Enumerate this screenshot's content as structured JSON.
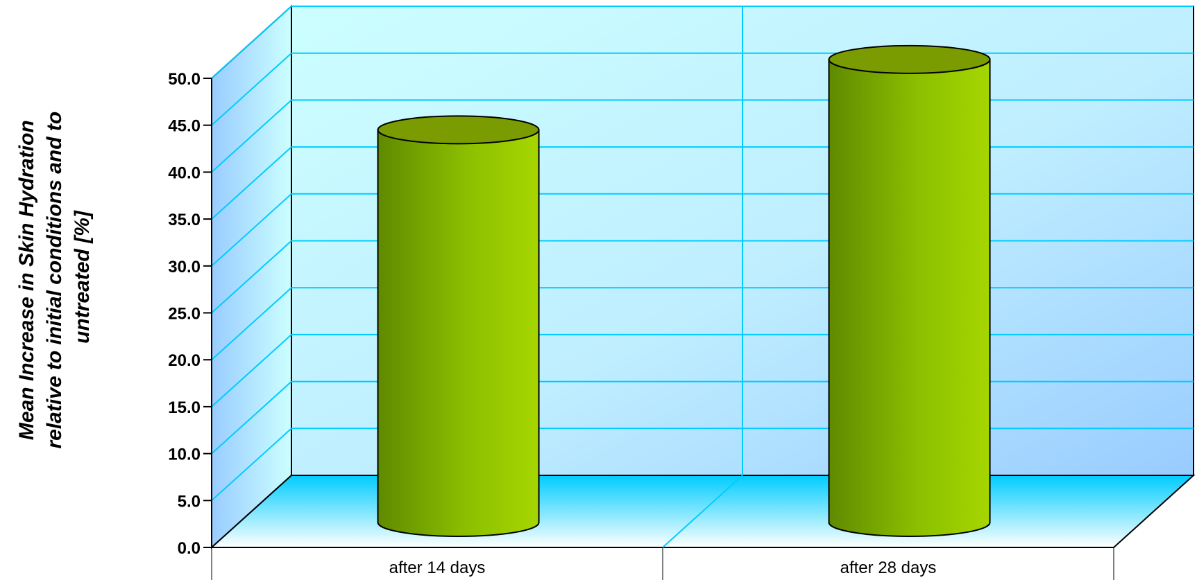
{
  "chart_data": {
    "type": "bar",
    "title": "",
    "xlabel": "",
    "ylabel_lines": [
      "Mean Increase in Skin Hydration",
      "relative to initial conditions and to",
      "untreated [%]"
    ],
    "categories": [
      "after 14 days",
      "after 28 days"
    ],
    "values": [
      41.0,
      48.5
    ],
    "ylim": [
      0,
      50
    ],
    "yticks": [
      "0.0",
      "5.0",
      "10.0",
      "15.0",
      "20.0",
      "25.0",
      "30.0",
      "35.0",
      "40.0",
      "45.0",
      "50.0"
    ],
    "grid": true,
    "legend": "none",
    "bar_shape": "cylinder",
    "colors": {
      "bar_dark": "#5f8a00",
      "bar_light": "#a6d600",
      "bar_top": "#7a9c00",
      "wall_light": "#ccffff",
      "wall_blue": "#99ccff",
      "floor_cyan": "#00ccff",
      "gridline": "#00ccff"
    }
  }
}
